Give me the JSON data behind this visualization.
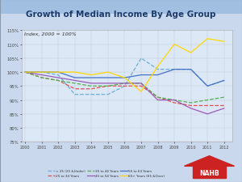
{
  "title": "Growth of Median Income By Age Group",
  "subtitle": "Index, 2000 = 100%",
  "years": [
    2000,
    2001,
    2002,
    2003,
    2004,
    2005,
    2006,
    2007,
    2008,
    2009,
    2010,
    2011,
    2012
  ],
  "series": [
    {
      "label": "< 25 (25 &Under)",
      "color": "#6aaed6",
      "style": "dashed",
      "values": [
        100,
        100,
        99,
        92,
        92,
        92,
        95,
        105,
        101,
        101,
        101,
        95,
        97
      ]
    },
    {
      "label": "25 to 34 Years",
      "color": "#e05050",
      "style": "dashed",
      "values": [
        100,
        98,
        97,
        94,
        94,
        95,
        95,
        95,
        91,
        89,
        88,
        88,
        88
      ]
    },
    {
      "label": "35 to 44 Years",
      "color": "#50b050",
      "style": "dashed",
      "values": [
        100,
        98,
        97,
        96,
        95,
        95,
        96,
        96,
        91,
        90,
        89,
        90,
        91
      ]
    },
    {
      "label": "45 to 54 Years",
      "color": "#9b59b6",
      "style": "solid",
      "values": [
        100,
        99,
        98,
        97,
        96,
        96,
        96,
        96,
        90,
        90,
        87,
        85,
        87
      ]
    },
    {
      "label": "55 to 64 Years",
      "color": "#4472C4",
      "style": "solid",
      "values": [
        100,
        100,
        100,
        98,
        98,
        98,
        98,
        99,
        99,
        101,
        101,
        95,
        97
      ]
    },
    {
      "label": "65+ Years (65 &Over)",
      "color": "#FFD700",
      "style": "solid",
      "values": [
        100,
        100,
        100,
        100,
        99,
        100,
        98,
        93,
        102,
        110,
        107,
        112,
        111
      ]
    }
  ],
  "ylim": [
    75,
    115
  ],
  "yticks": [
    75,
    80,
    85,
    90,
    95,
    100,
    105,
    110,
    115
  ],
  "ytick_labels": [
    "75%",
    "80%",
    "85%",
    "90%",
    "95%",
    "100%",
    "105%",
    "110%",
    "115%"
  ],
  "outer_bg": "#c9d8ec",
  "header_color": "#5b87c5",
  "plot_bg_color": "#dce8f5",
  "title_color": "#1a3a6b",
  "title_fontsize": 7.5,
  "subtitle_fontsize": 4.5
}
